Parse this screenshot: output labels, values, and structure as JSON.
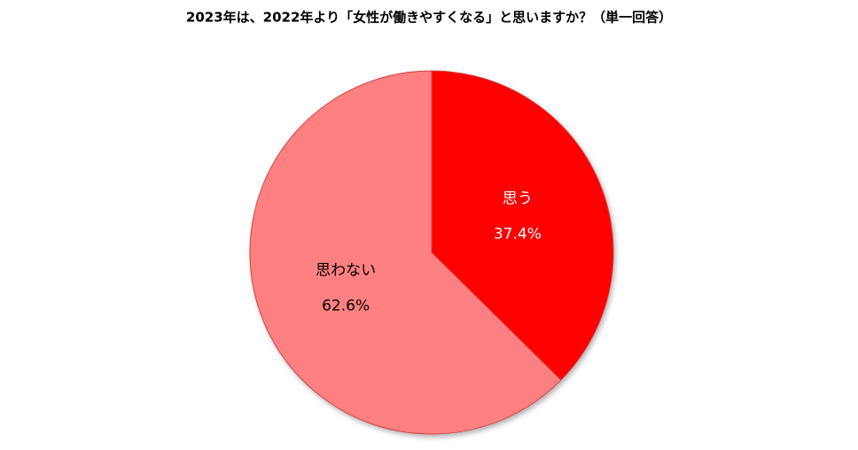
{
  "chart_data": {
    "type": "pie",
    "title": "2023年は、2022年より「女性が働きやすくなる」と思いますか？（単一回答）",
    "categories": [
      "思う",
      "思わない"
    ],
    "values": [
      37.4,
      62.6
    ],
    "value_labels": [
      "37.4%",
      "62.6%"
    ],
    "colors": [
      "#ff0000",
      "#ff8080"
    ],
    "label_colors": [
      "#ffffff",
      "#000000"
    ]
  }
}
